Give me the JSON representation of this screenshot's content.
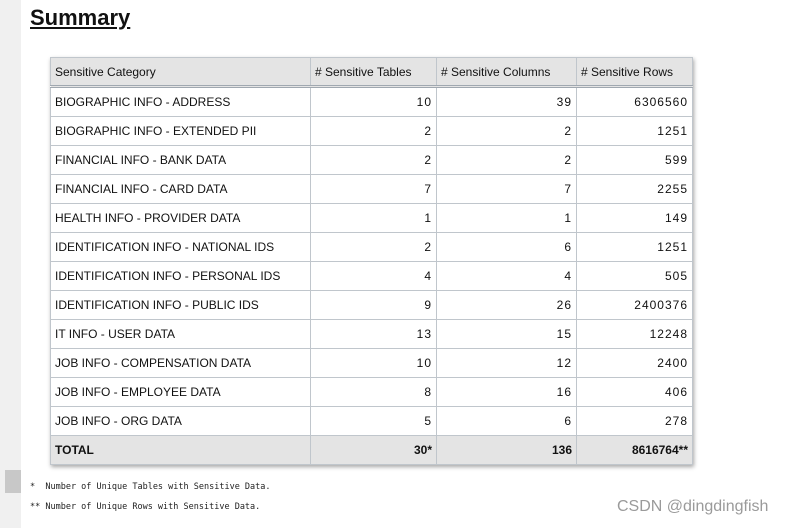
{
  "title": "Summary",
  "table": {
    "headers": [
      "Sensitive Category",
      "# Sensitive Tables",
      "# Sensitive Columns",
      "# Sensitive Rows"
    ],
    "rows": [
      [
        "BIOGRAPHIC INFO - ADDRESS",
        10,
        39,
        6306560
      ],
      [
        "BIOGRAPHIC INFO - EXTENDED PII",
        2,
        2,
        1251
      ],
      [
        "FINANCIAL INFO - BANK DATA",
        2,
        2,
        599
      ],
      [
        "FINANCIAL INFO - CARD DATA",
        7,
        7,
        2255
      ],
      [
        "HEALTH INFO - PROVIDER DATA",
        1,
        1,
        149
      ],
      [
        "IDENTIFICATION INFO - NATIONAL IDS",
        2,
        6,
        1251
      ],
      [
        "IDENTIFICATION INFO - PERSONAL IDS",
        4,
        4,
        505
      ],
      [
        "IDENTIFICATION INFO - PUBLIC IDS",
        9,
        26,
        2400376
      ],
      [
        "IT INFO - USER DATA",
        13,
        15,
        12248
      ],
      [
        "JOB INFO - COMPENSATION DATA",
        10,
        12,
        2400
      ],
      [
        "JOB INFO - EMPLOYEE DATA",
        8,
        16,
        406
      ],
      [
        "JOB INFO - ORG DATA",
        5,
        6,
        278
      ]
    ],
    "total": [
      "TOTAL",
      "30*",
      136,
      "8616764**"
    ]
  },
  "footnotes": [
    "*  Number of Unique Tables with Sensitive Data.",
    "** Number of Unique Rows with Sensitive Data."
  ],
  "watermark": "CSDN @dingdingfish"
}
